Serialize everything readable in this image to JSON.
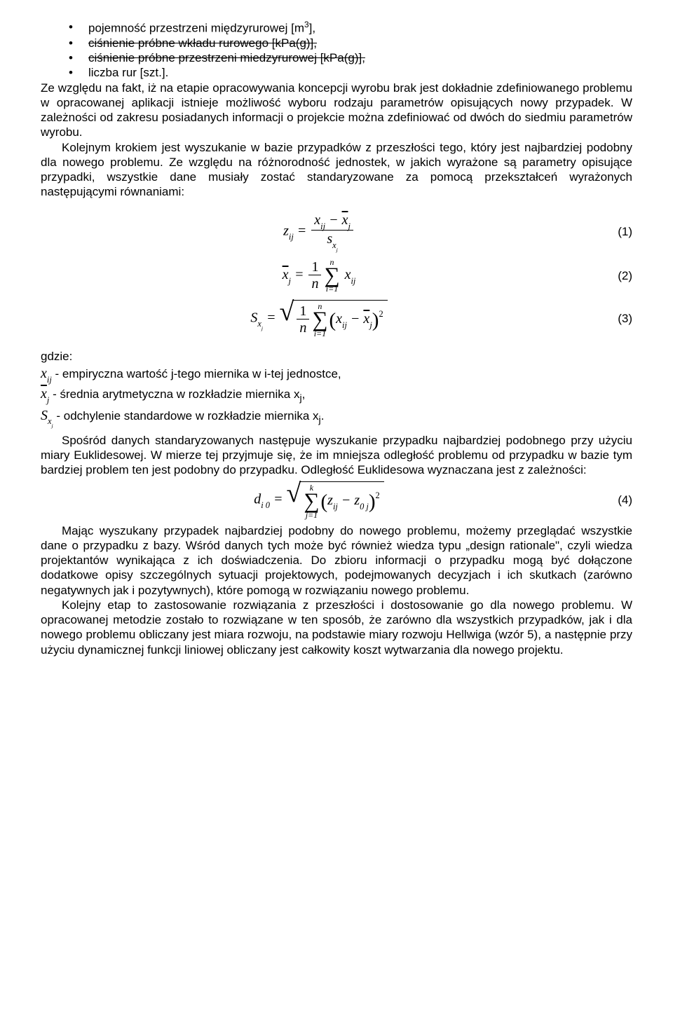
{
  "bullets": {
    "b1": "pojemność przestrzeni międzyrurowej [m",
    "b1_sup": "3",
    "b1_tail": "],",
    "b2": "ciśnienie próbne wkładu rurowego [kPa(g)],",
    "b3": "ciśnienie próbne przestrzeni miedzyrurowej [kPa(g)],",
    "b4": "liczba rur [szt.]."
  },
  "para1": "Ze względu na fakt, iż na etapie opracowywania koncepcji wyrobu brak jest dokładnie zdefiniowanego problemu w opracowanej aplikacji istnieje możliwość wyboru rodzaju parametrów opisujących nowy przypadek. W zależności od zakresu posiadanych informacji o projekcie można zdefiniować od dwóch do siedmiu parametrów wyrobu.",
  "para2": "Kolejnym krokiem jest wyszukanie w bazie przypadków z przeszłości tego, który jest najbardziej podobny dla nowego problemu. Ze względu na różnorodność jednostek, w jakich wyrażone są parametry opisujące przypadki, wszystkie dane musiały zostać standaryzowane za pomocą przekształceń wyrażonych następującymi równaniami:",
  "eq": {
    "n1": "(1)",
    "n2": "(2)",
    "n3": "(3)",
    "n4": "(4)"
  },
  "gdzie": "gdzie:",
  "def1_tail": " - empiryczna wartość j-tego miernika w i-tej jednostce,",
  "def2_tail": " - średnia arytmetyczna w rozkładzie miernika x",
  "def2_sub": "j",
  "def2_end": ",",
  "def3_tail": " - odchylenie standardowe w rozkładzie miernika x",
  "def3_sub": "j",
  "def3_end": ".",
  "para3": "Spośród danych standaryzowanych następuje wyszukanie przypadku najbardziej podobnego przy użyciu miary Euklidesowej. W mierze tej przyjmuje się, że im mniejsza odległość problemu od przypadku w bazie tym bardziej problem ten jest podobny do przypadku. Odległość Euklidesowa wyznaczana jest z zależności:",
  "para4": "Mając wyszukany przypadek najbardziej podobny do nowego problemu, możemy przeglądać wszystkie dane o przypadku z bazy. Wśród danych tych może być również wiedza typu „design rationale\", czyli wiedza projektantów wynikająca z ich doświadczenia. Do zbioru informacji o przypadku mogą być dołączone dodatkowe opisy szczególnych sytuacji projektowych, podejmowanych decyzjach i ich skutkach (zarówno negatywnych jak i pozytywnych), które pomogą w rozwiązaniu nowego problemu.",
  "para5": "Kolejny etap to zastosowanie rozwiązania z przeszłości i dostosowanie go dla nowego problemu. W opracowanej metodzie zostało to rozwiązane w ten sposób, że zarówno dla wszystkich przypadków, jak i dla nowego problemu obliczany jest miara rozwoju, na podstawie miary rozwoju Hellwiga (wzór 5), a następnie przy użyciu dynamicznej funkcji liniowej obliczany jest całkowity koszt wytwarzania dla nowego projektu."
}
